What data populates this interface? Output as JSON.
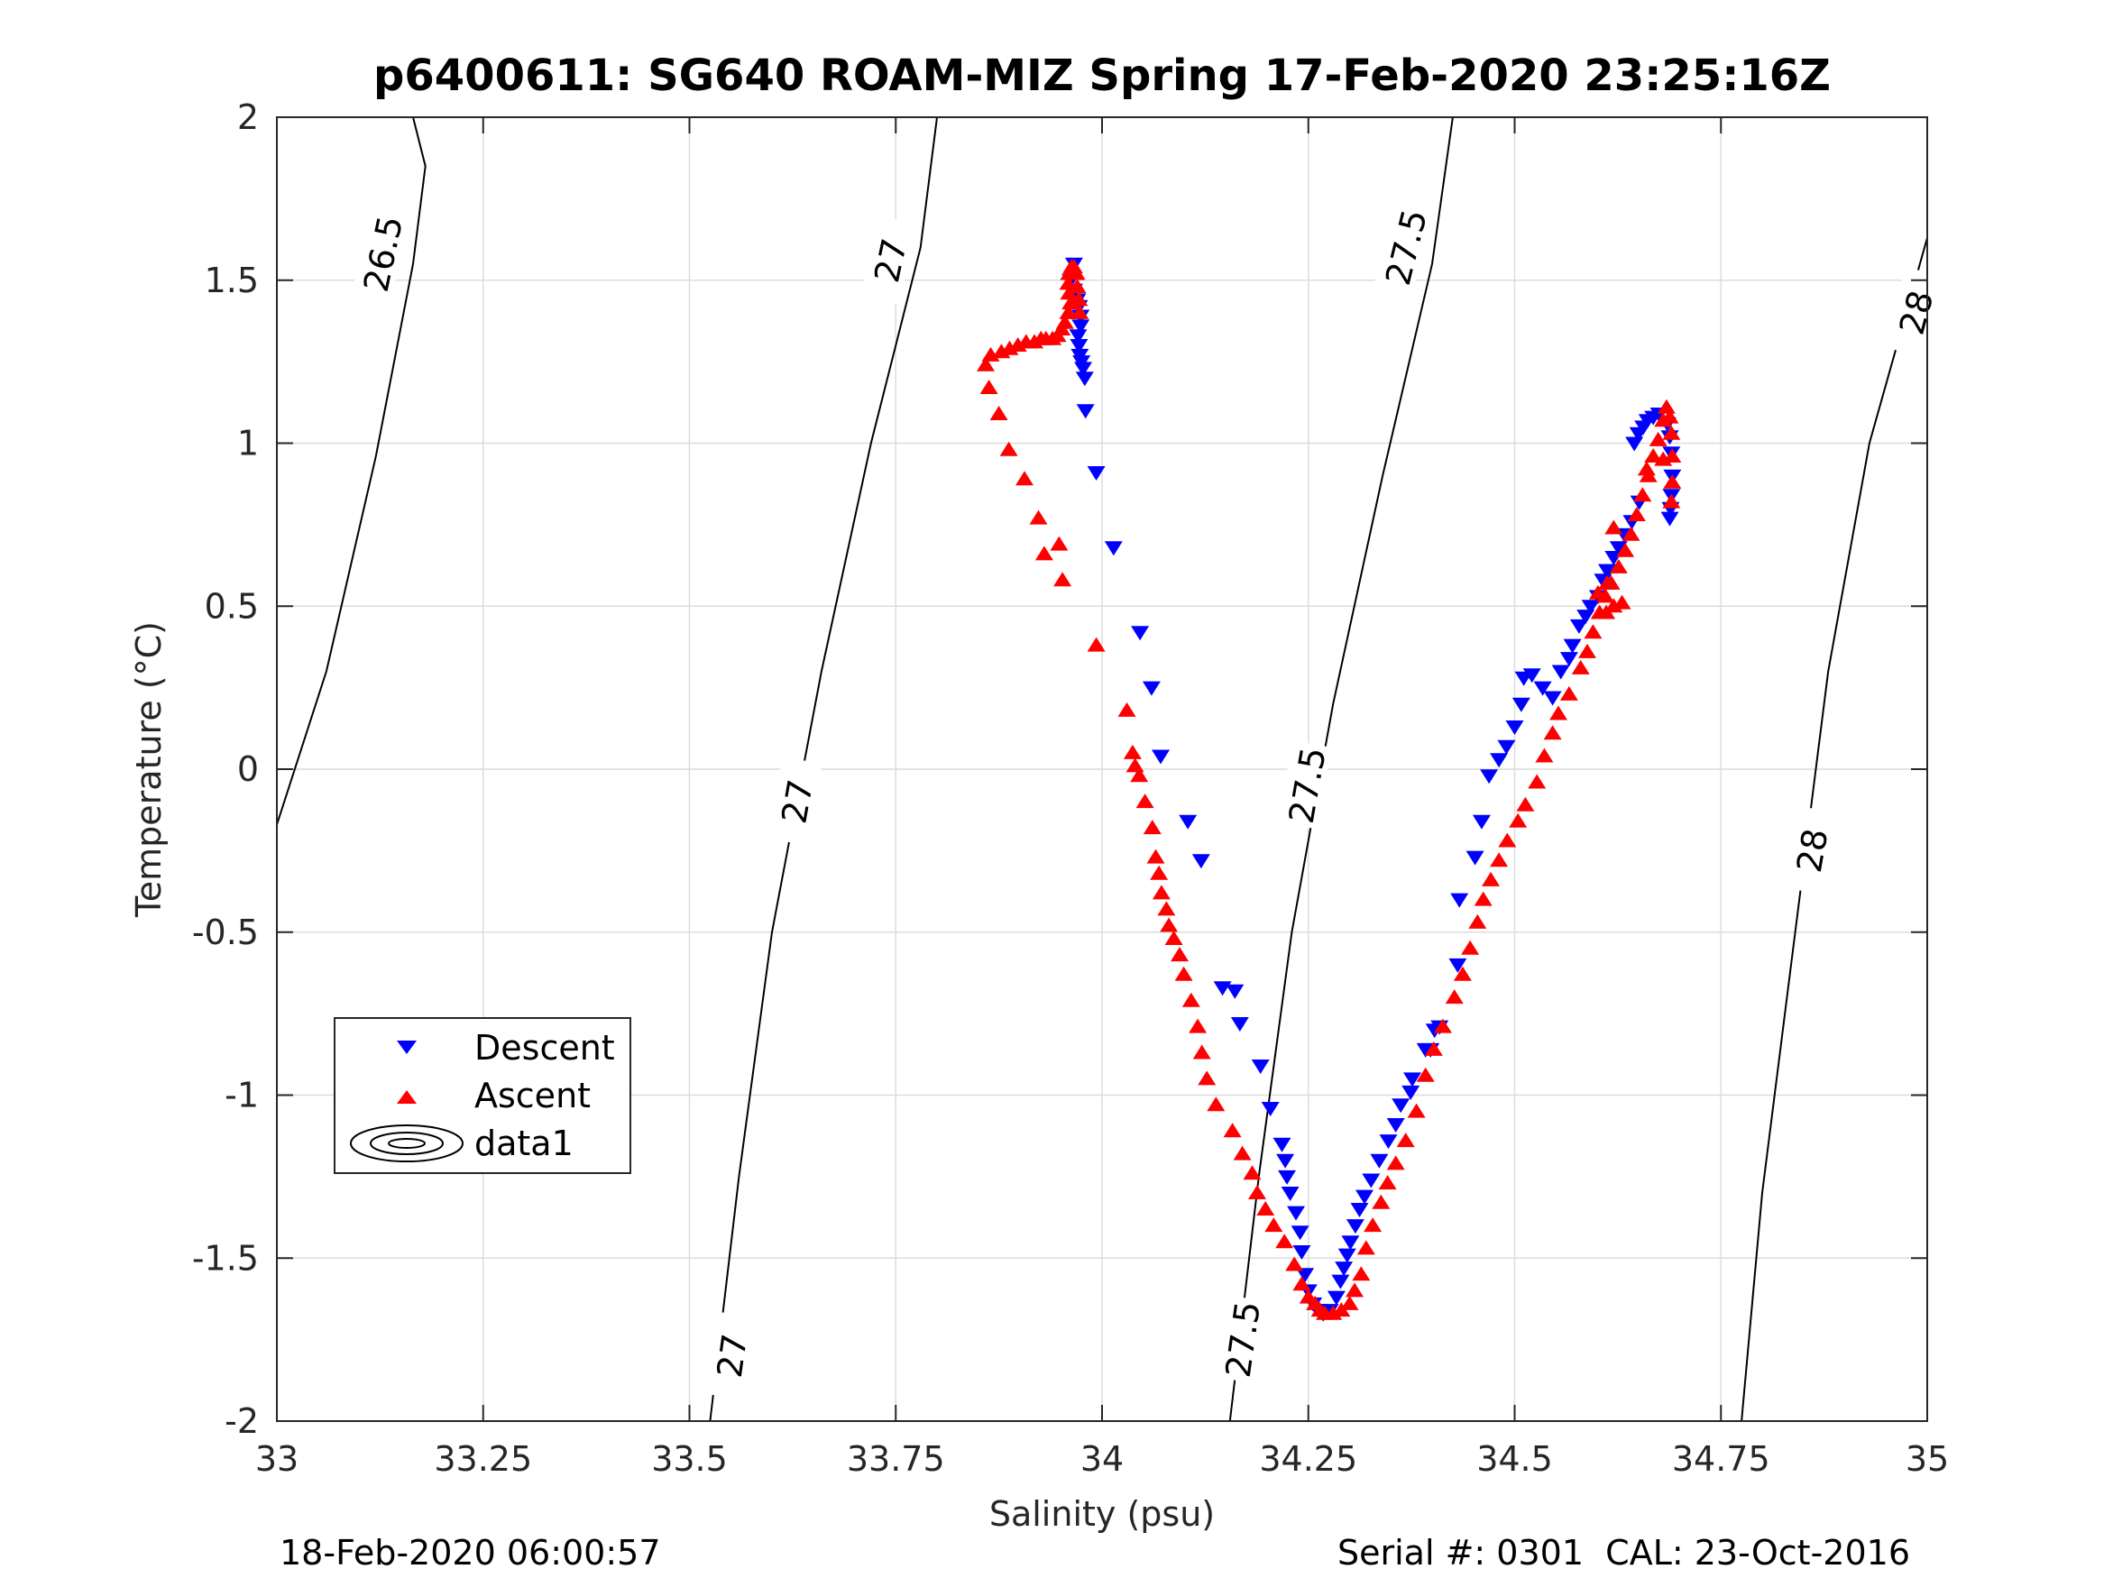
{
  "chart_data": {
    "type": "scatter",
    "title": "p6400611: SG640 ROAM-MIZ Spring 17-Feb-2020 23:25:16Z",
    "xlabel": "Salinity (psu)",
    "ylabel": "Temperature (°C)",
    "xlim": [
      33,
      35
    ],
    "ylim": [
      -2,
      2
    ],
    "x_ticks": [
      33,
      33.25,
      33.5,
      33.75,
      34,
      34.25,
      34.5,
      34.75,
      35
    ],
    "x_tick_labels": [
      "33",
      "33.25",
      "33.5",
      "33.75",
      "34",
      "34.25",
      "34.5",
      "34.75",
      "35"
    ],
    "y_ticks": [
      -2,
      -1.5,
      -1,
      -0.5,
      0,
      0.5,
      1,
      1.5,
      2
    ],
    "y_tick_labels": [
      "-2",
      "-1.5",
      "-1",
      "-0.5",
      "0",
      "0.5",
      "1",
      "1.5",
      "2"
    ],
    "grid": true,
    "legend": {
      "placement": "bottom-left",
      "entries": [
        "Descent",
        "Ascent",
        "data1"
      ]
    },
    "series": [
      {
        "name": "Descent",
        "marker": "triangle-down",
        "color": "#0000ff",
        "points": [
          [
            33.966,
            1.55
          ],
          [
            33.962,
            1.5
          ],
          [
            33.966,
            1.47
          ],
          [
            33.97,
            1.44
          ],
          [
            33.972,
            1.42
          ],
          [
            33.974,
            1.39
          ],
          [
            33.974,
            1.36
          ],
          [
            33.971,
            1.33
          ],
          [
            33.972,
            1.3
          ],
          [
            33.973,
            1.27
          ],
          [
            33.975,
            1.25
          ],
          [
            33.977,
            1.23
          ],
          [
            33.979,
            1.2
          ],
          [
            33.98,
            1.1
          ],
          [
            33.993,
            0.91
          ],
          [
            34.014,
            0.68
          ],
          [
            34.046,
            0.42
          ],
          [
            34.06,
            0.25
          ],
          [
            34.071,
            0.04
          ],
          [
            34.104,
            -0.16
          ],
          [
            34.12,
            -0.28
          ],
          [
            34.146,
            -0.67
          ],
          [
            34.161,
            -0.68
          ],
          [
            34.167,
            -0.78
          ],
          [
            34.192,
            -0.91
          ],
          [
            34.204,
            -1.04
          ],
          [
            34.218,
            -1.15
          ],
          [
            34.222,
            -1.2
          ],
          [
            34.224,
            -1.25
          ],
          [
            34.228,
            -1.3
          ],
          [
            34.235,
            -1.36
          ],
          [
            34.24,
            -1.42
          ],
          [
            34.242,
            -1.48
          ],
          [
            34.246,
            -1.55
          ],
          [
            34.25,
            -1.6
          ],
          [
            34.256,
            -1.64
          ],
          [
            34.262,
            -1.66
          ],
          [
            34.268,
            -1.67
          ],
          [
            34.276,
            -1.66
          ],
          [
            34.284,
            -1.62
          ],
          [
            34.289,
            -1.57
          ],
          [
            34.293,
            -1.53
          ],
          [
            34.297,
            -1.49
          ],
          [
            34.301,
            -1.45
          ],
          [
            34.307,
            -1.4
          ],
          [
            34.312,
            -1.35
          ],
          [
            34.318,
            -1.31
          ],
          [
            34.326,
            -1.26
          ],
          [
            34.336,
            -1.2
          ],
          [
            34.347,
            -1.14
          ],
          [
            34.356,
            -1.09
          ],
          [
            34.362,
            -1.03
          ],
          [
            34.374,
            -0.99
          ],
          [
            34.376,
            -0.95
          ],
          [
            34.392,
            -0.86
          ],
          [
            34.398,
            -0.86
          ],
          [
            34.403,
            -0.8
          ],
          [
            34.409,
            -0.79
          ],
          [
            34.431,
            -0.6
          ],
          [
            34.433,
            -0.4
          ],
          [
            34.452,
            -0.27
          ],
          [
            34.46,
            -0.16
          ],
          [
            34.469,
            -0.02
          ],
          [
            34.481,
            0.03
          ],
          [
            34.49,
            0.07
          ],
          [
            34.5,
            0.13
          ],
          [
            34.508,
            0.2
          ],
          [
            34.511,
            0.28
          ],
          [
            34.521,
            0.29
          ],
          [
            34.534,
            0.25
          ],
          [
            34.546,
            0.22
          ],
          [
            34.556,
            0.3
          ],
          [
            34.566,
            0.34
          ],
          [
            34.57,
            0.38
          ],
          [
            34.578,
            0.44
          ],
          [
            34.586,
            0.47
          ],
          [
            34.592,
            0.5
          ],
          [
            34.601,
            0.53
          ],
          [
            34.607,
            0.58
          ],
          [
            34.612,
            0.61
          ],
          [
            34.62,
            0.65
          ],
          [
            34.626,
            0.68
          ],
          [
            34.633,
            0.72
          ],
          [
            34.642,
            0.76
          ],
          [
            34.651,
            0.82
          ],
          [
            34.645,
            1.0
          ],
          [
            34.65,
            1.03
          ],
          [
            34.656,
            1.05
          ],
          [
            34.661,
            1.07
          ],
          [
            34.668,
            1.08
          ],
          [
            34.675,
            1.09
          ],
          [
            34.685,
            1.06
          ],
          [
            34.688,
            1.02
          ],
          [
            34.69,
            0.97
          ],
          [
            34.691,
            0.9
          ],
          [
            34.69,
            0.84
          ],
          [
            34.689,
            0.8
          ],
          [
            34.688,
            0.77
          ]
        ]
      },
      {
        "name": "Ascent",
        "marker": "triangle-up",
        "color": "#ff0000",
        "points": [
          [
            33.859,
            1.24
          ],
          [
            33.865,
            1.27
          ],
          [
            33.878,
            1.28
          ],
          [
            33.888,
            1.29
          ],
          [
            33.898,
            1.3
          ],
          [
            33.908,
            1.31
          ],
          [
            33.918,
            1.31
          ],
          [
            33.926,
            1.32
          ],
          [
            33.932,
            1.32
          ],
          [
            33.94,
            1.32
          ],
          [
            33.946,
            1.33
          ],
          [
            33.951,
            1.35
          ],
          [
            33.955,
            1.37
          ],
          [
            33.959,
            1.4
          ],
          [
            33.962,
            1.43
          ],
          [
            33.96,
            1.46
          ],
          [
            33.959,
            1.49
          ],
          [
            33.96,
            1.52
          ],
          [
            33.963,
            1.54
          ],
          [
            33.966,
            1.54
          ],
          [
            33.969,
            1.52
          ],
          [
            33.97,
            1.48
          ],
          [
            33.972,
            1.44
          ],
          [
            33.973,
            1.4
          ],
          [
            33.863,
            1.17
          ],
          [
            33.875,
            1.09
          ],
          [
            33.887,
            0.98
          ],
          [
            33.906,
            0.89
          ],
          [
            33.923,
            0.77
          ],
          [
            33.93,
            0.66
          ],
          [
            33.948,
            0.69
          ],
          [
            33.952,
            0.58
          ],
          [
            33.993,
            0.38
          ],
          [
            34.03,
            0.18
          ],
          [
            34.037,
            0.05
          ],
          [
            34.04,
            0.01
          ],
          [
            34.045,
            -0.02
          ],
          [
            34.052,
            -0.1
          ],
          [
            34.061,
            -0.18
          ],
          [
            34.065,
            -0.27
          ],
          [
            34.069,
            -0.32
          ],
          [
            34.072,
            -0.38
          ],
          [
            34.078,
            -0.43
          ],
          [
            34.081,
            -0.48
          ],
          [
            34.087,
            -0.52
          ],
          [
            34.094,
            -0.57
          ],
          [
            34.099,
            -0.63
          ],
          [
            34.108,
            -0.71
          ],
          [
            34.116,
            -0.79
          ],
          [
            34.121,
            -0.87
          ],
          [
            34.127,
            -0.95
          ],
          [
            34.138,
            -1.03
          ],
          [
            34.158,
            -1.11
          ],
          [
            34.17,
            -1.18
          ],
          [
            34.182,
            -1.24
          ],
          [
            34.188,
            -1.3
          ],
          [
            34.198,
            -1.35
          ],
          [
            34.208,
            -1.4
          ],
          [
            34.221,
            -1.45
          ],
          [
            34.233,
            -1.52
          ],
          [
            34.242,
            -1.58
          ],
          [
            34.25,
            -1.62
          ],
          [
            34.258,
            -1.64
          ],
          [
            34.264,
            -1.66
          ],
          [
            34.27,
            -1.67
          ],
          [
            34.28,
            -1.67
          ],
          [
            34.29,
            -1.66
          ],
          [
            34.3,
            -1.64
          ],
          [
            34.306,
            -1.6
          ],
          [
            34.314,
            -1.55
          ],
          [
            34.32,
            -1.47
          ],
          [
            34.328,
            -1.4
          ],
          [
            34.338,
            -1.33
          ],
          [
            34.346,
            -1.27
          ],
          [
            34.356,
            -1.21
          ],
          [
            34.368,
            -1.14
          ],
          [
            34.381,
            -1.05
          ],
          [
            34.392,
            -0.94
          ],
          [
            34.402,
            -0.86
          ],
          [
            34.413,
            -0.79
          ],
          [
            34.427,
            -0.7
          ],
          [
            34.437,
            -0.63
          ],
          [
            34.446,
            -0.55
          ],
          [
            34.455,
            -0.47
          ],
          [
            34.462,
            -0.4
          ],
          [
            34.471,
            -0.34
          ],
          [
            34.481,
            -0.28
          ],
          [
            34.491,
            -0.22
          ],
          [
            34.504,
            -0.16
          ],
          [
            34.513,
            -0.11
          ],
          [
            34.527,
            -0.04
          ],
          [
            34.536,
            0.04
          ],
          [
            34.546,
            0.11
          ],
          [
            34.553,
            0.17
          ],
          [
            34.566,
            0.23
          ],
          [
            34.58,
            0.31
          ],
          [
            34.588,
            0.36
          ],
          [
            34.595,
            0.42
          ],
          [
            34.603,
            0.48
          ],
          [
            34.61,
            0.53
          ],
          [
            34.617,
            0.57
          ],
          [
            34.626,
            0.62
          ],
          [
            34.634,
            0.67
          ],
          [
            34.641,
            0.72
          ],
          [
            34.648,
            0.78
          ],
          [
            34.655,
            0.84
          ],
          [
            34.662,
            0.9
          ],
          [
            34.668,
            0.96
          ],
          [
            34.674,
            1.01
          ],
          [
            34.68,
            1.07
          ],
          [
            34.684,
            1.11
          ],
          [
            34.688,
            1.08
          ],
          [
            34.69,
            1.03
          ],
          [
            34.691,
            0.96
          ],
          [
            34.691,
            0.88
          ],
          [
            34.69,
            0.82
          ],
          [
            34.611,
            0.48
          ],
          [
            34.62,
            0.5
          ],
          [
            34.63,
            0.51
          ],
          [
            34.612,
            0.57
          ],
          [
            34.601,
            0.54
          ],
          [
            34.62,
            0.74
          ],
          [
            34.66,
            0.92
          ],
          [
            34.68,
            0.95
          ]
        ]
      }
    ],
    "contours": {
      "name": "data1",
      "levels": [
        {
          "label": "26.5",
          "points": [
            [
              33.0,
              -0.17
            ],
            [
              33.06,
              0.3
            ],
            [
              33.12,
              0.96
            ],
            [
              33.165,
              1.55
            ],
            [
              33.18,
              1.85
            ],
            [
              33.165,
              2.0
            ]
          ]
        },
        {
          "label": "27",
          "points": [
            [
              33.525,
              -2.0
            ],
            [
              33.56,
              -1.25
            ],
            [
              33.6,
              -0.5
            ],
            [
              33.66,
              0.3
            ],
            [
              33.72,
              1.0
            ],
            [
              33.78,
              1.6
            ],
            [
              33.8,
              2.0
            ]
          ]
        },
        {
          "label": "27.5",
          "points": [
            [
              34.155,
              -2.0
            ],
            [
              34.19,
              -1.25
            ],
            [
              34.23,
              -0.5
            ],
            [
              34.28,
              0.2
            ],
            [
              34.34,
              0.9
            ],
            [
              34.4,
              1.55
            ],
            [
              34.425,
              2.0
            ]
          ]
        },
        {
          "label": "28",
          "points": [
            [
              34.775,
              -2.0
            ],
            [
              34.8,
              -1.3
            ],
            [
              34.84,
              -0.5
            ],
            [
              34.88,
              0.3
            ],
            [
              34.93,
              1.0
            ],
            [
              34.98,
              1.45
            ],
            [
              35.0,
              1.63
            ]
          ]
        }
      ],
      "contour_labels": [
        {
          "text": "26.5",
          "at": [
            33.13,
            1.58
          ],
          "rotate": -78
        },
        {
          "text": "27",
          "at": [
            33.745,
            1.56
          ],
          "rotate": -78
        },
        {
          "text": "27",
          "at": [
            33.632,
            -0.1
          ],
          "rotate": -80
        },
        {
          "text": "27",
          "at": [
            33.553,
            -1.8
          ],
          "rotate": -82
        },
        {
          "text": "27.5",
          "at": [
            34.37,
            1.6
          ],
          "rotate": -76
        },
        {
          "text": "27.5",
          "at": [
            34.25,
            -0.05
          ],
          "rotate": -80
        },
        {
          "text": "27.5",
          "at": [
            34.172,
            -1.75
          ],
          "rotate": -82
        },
        {
          "text": "28",
          "at": [
            34.988,
            1.4
          ],
          "rotate": -75
        },
        {
          "text": "28",
          "at": [
            34.862,
            -0.25
          ],
          "rotate": -80
        }
      ]
    }
  },
  "footer": {
    "left": "18-Feb-2020 06:00:57",
    "right": "Serial #: 0301  CAL: 23-Oct-2016"
  },
  "legend_labels": {
    "descent": "Descent",
    "ascent": "Ascent",
    "data1": "data1"
  },
  "colors": {
    "descent": "#0000ff",
    "ascent": "#ff0000",
    "grid": "#dcdcdc",
    "axis": "#262626"
  }
}
